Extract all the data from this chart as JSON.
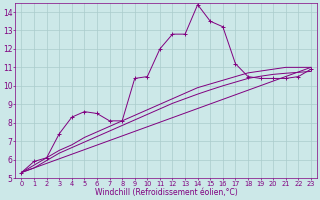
{
  "xlabel": "Windchill (Refroidissement éolien,°C)",
  "bg_color": "#cce8e8",
  "line_color": "#800080",
  "grid_color": "#aacccc",
  "xlim": [
    -0.5,
    23.5
  ],
  "ylim": [
    5,
    14.5
  ],
  "yticks": [
    5,
    6,
    7,
    8,
    9,
    10,
    11,
    12,
    13,
    14
  ],
  "xticks": [
    0,
    1,
    2,
    3,
    4,
    5,
    6,
    7,
    8,
    9,
    10,
    11,
    12,
    13,
    14,
    15,
    16,
    17,
    18,
    19,
    20,
    21,
    22,
    23
  ],
  "series1_x": [
    0,
    1,
    2,
    3,
    4,
    5,
    6,
    7,
    8,
    9,
    10,
    11,
    12,
    13,
    14,
    15,
    16,
    17,
    18,
    19,
    20,
    21,
    22,
    23
  ],
  "series1_y": [
    5.3,
    5.9,
    6.1,
    7.4,
    8.3,
    8.6,
    8.5,
    8.1,
    8.1,
    10.4,
    10.5,
    12.0,
    12.8,
    12.8,
    14.4,
    13.5,
    13.2,
    11.2,
    10.5,
    10.4,
    10.4,
    10.4,
    10.5,
    10.9
  ],
  "series2_x": [
    0,
    1,
    2,
    3,
    4,
    5,
    6,
    7,
    8,
    9,
    10,
    11,
    12,
    13,
    14,
    15,
    16,
    17,
    18,
    19,
    20,
    21,
    22,
    23
  ],
  "series2_y": [
    5.3,
    5.7,
    6.1,
    6.5,
    6.8,
    7.2,
    7.5,
    7.8,
    8.1,
    8.4,
    8.7,
    9.0,
    9.3,
    9.6,
    9.9,
    10.1,
    10.3,
    10.5,
    10.7,
    10.8,
    10.9,
    11.0,
    11.0,
    11.0
  ],
  "series3_x": [
    0,
    23
  ],
  "series3_y": [
    5.3,
    11.0
  ],
  "series4_x": [
    0,
    1,
    2,
    3,
    4,
    5,
    6,
    7,
    8,
    9,
    10,
    11,
    12,
    13,
    14,
    15,
    16,
    17,
    18,
    19,
    20,
    21,
    22,
    23
  ],
  "series4_y": [
    5.3,
    5.55,
    5.95,
    6.35,
    6.65,
    6.95,
    7.25,
    7.55,
    7.85,
    8.15,
    8.45,
    8.75,
    9.05,
    9.3,
    9.55,
    9.78,
    10.0,
    10.2,
    10.4,
    10.52,
    10.62,
    10.68,
    10.73,
    10.78
  ],
  "xlabel_fontsize": 5.5,
  "xtick_fontsize": 4.8,
  "ytick_fontsize": 5.5
}
